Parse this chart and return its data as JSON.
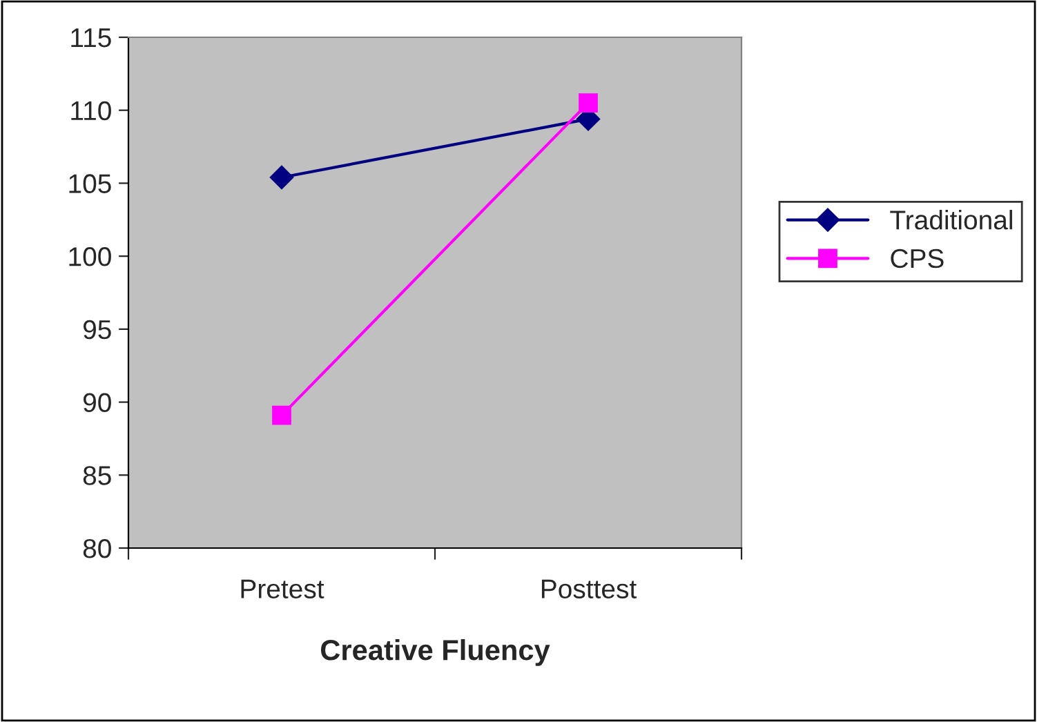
{
  "chart_data": {
    "type": "line",
    "xlabel": "Creative Fluency",
    "categories": [
      "Pretest",
      "Posttest"
    ],
    "series": [
      {
        "name": "Traditional",
        "color": "#000080",
        "values": [
          105.4,
          109.4
        ],
        "marker": "diamond"
      },
      {
        "name": "CPS",
        "color": "#ff00ff",
        "values": [
          89.1,
          110.5
        ],
        "marker": "square"
      }
    ],
    "ylim": [
      80,
      115
    ],
    "yticks": [
      80,
      85,
      90,
      95,
      100,
      105,
      110,
      115
    ],
    "grid": false,
    "legend": "right",
    "line_style": "solid"
  }
}
